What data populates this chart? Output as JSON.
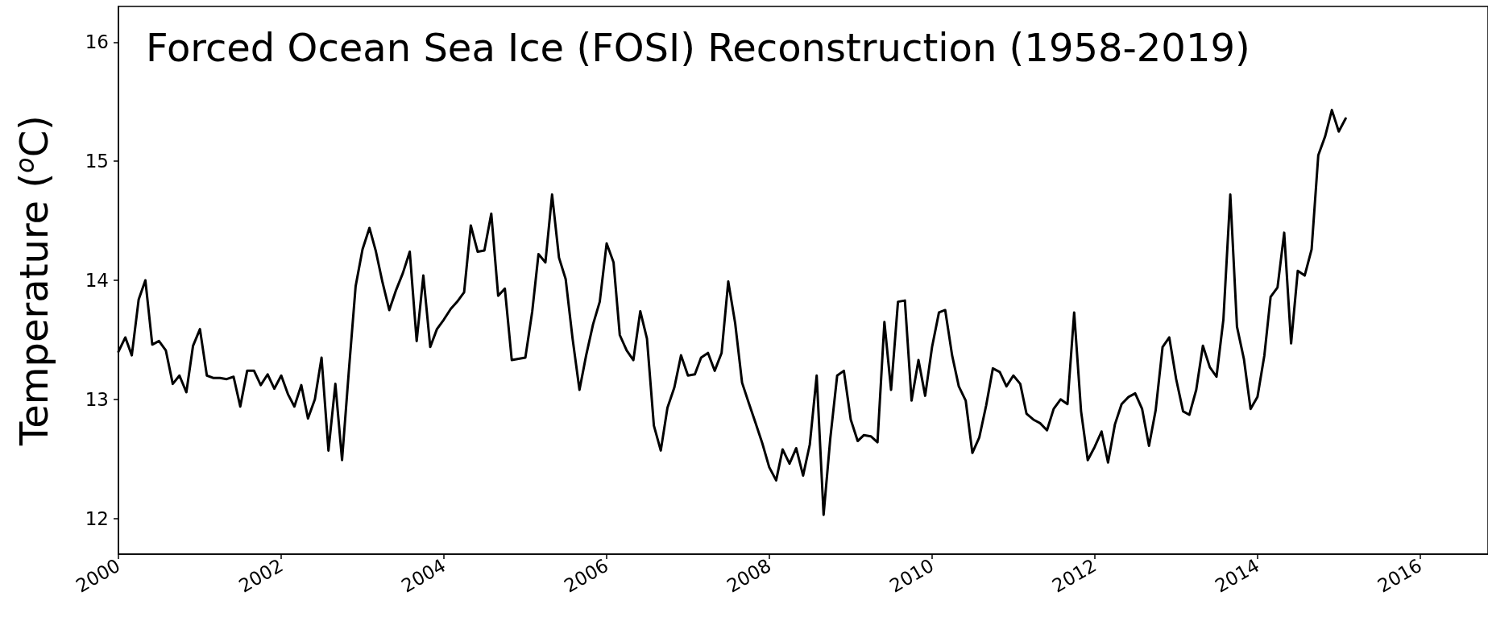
{
  "chart_data": {
    "type": "line",
    "title": "Forced Ocean Sea Ice (FOSI) Reconstruction (1958-2019)",
    "ylabel": "Temperature ($^{o}$C)",
    "x": [
      "2000-01",
      "2000-02",
      "2000-03",
      "2000-04",
      "2000-05",
      "2000-06",
      "2000-07",
      "2000-08",
      "2000-09",
      "2000-10",
      "2000-11",
      "2000-12",
      "2001-01",
      "2001-02",
      "2001-03",
      "2001-04",
      "2001-05",
      "2001-06",
      "2001-07",
      "2001-08",
      "2001-09",
      "2001-10",
      "2001-11",
      "2001-12",
      "2002-01",
      "2002-02",
      "2002-03",
      "2002-04",
      "2002-05",
      "2002-06",
      "2002-07",
      "2002-08",
      "2002-09",
      "2002-10",
      "2002-11",
      "2002-12",
      "2003-01",
      "2003-02",
      "2003-03",
      "2003-04",
      "2003-05",
      "2003-06",
      "2003-07",
      "2003-08",
      "2003-09",
      "2003-10",
      "2003-11",
      "2003-12",
      "2004-01",
      "2004-02",
      "2004-03",
      "2004-04",
      "2004-05",
      "2004-06",
      "2004-07",
      "2004-08",
      "2004-09",
      "2004-10",
      "2004-11",
      "2004-12",
      "2005-01",
      "2005-02",
      "2005-03",
      "2005-04",
      "2005-05",
      "2005-06",
      "2005-07",
      "2005-08",
      "2005-09",
      "2005-10",
      "2005-11",
      "2005-12",
      "2006-01",
      "2006-02",
      "2006-03",
      "2006-04",
      "2006-05",
      "2006-06",
      "2006-07",
      "2006-08",
      "2006-09",
      "2006-10",
      "2006-11",
      "2006-12",
      "2007-01",
      "2007-02",
      "2007-03",
      "2007-04",
      "2007-05",
      "2007-06",
      "2007-07",
      "2007-08",
      "2007-09",
      "2007-10",
      "2007-11",
      "2007-12",
      "2008-01",
      "2008-02",
      "2008-03",
      "2008-04",
      "2008-05",
      "2008-06",
      "2008-07",
      "2008-08",
      "2008-09",
      "2008-10",
      "2008-11",
      "2008-12",
      "2009-01",
      "2009-02",
      "2009-03",
      "2009-04",
      "2009-05",
      "2009-06",
      "2009-07",
      "2009-08",
      "2009-09",
      "2009-10",
      "2009-11",
      "2009-12",
      "2010-01",
      "2010-02",
      "2010-03",
      "2010-04",
      "2010-05",
      "2010-06",
      "2010-07",
      "2010-08",
      "2010-09",
      "2010-10",
      "2010-11",
      "2010-12",
      "2011-01",
      "2011-02",
      "2011-03",
      "2011-04",
      "2011-05",
      "2011-06",
      "2011-07",
      "2011-08",
      "2011-09",
      "2011-10",
      "2011-11",
      "2011-12",
      "2012-01",
      "2012-02",
      "2012-03",
      "2012-04",
      "2012-05",
      "2012-06",
      "2012-07",
      "2012-08",
      "2012-09",
      "2012-10",
      "2012-11",
      "2012-12",
      "2013-01",
      "2013-02",
      "2013-03",
      "2013-04",
      "2013-05",
      "2013-06",
      "2013-07",
      "2013-08",
      "2013-09",
      "2013-10",
      "2013-11",
      "2013-12",
      "2014-01",
      "2014-02",
      "2014-03",
      "2014-04",
      "2014-05",
      "2014-06",
      "2014-07",
      "2014-08",
      "2014-09",
      "2014-10",
      "2014-11",
      "2014-12",
      "2015-01",
      "2015-02"
    ],
    "series": [
      {
        "color": "#000000",
        "values": [
          13.4,
          13.52,
          13.37,
          13.84,
          14.0,
          13.46,
          13.49,
          13.41,
          13.13,
          13.2,
          13.06,
          13.45,
          13.59,
          13.2,
          13.18,
          13.18,
          13.17,
          13.19,
          12.94,
          13.24,
          13.24,
          13.12,
          13.21,
          13.09,
          13.2,
          13.04,
          12.94,
          13.12,
          12.84,
          13.0,
          13.35,
          12.57,
          13.13,
          12.49,
          13.25,
          13.95,
          14.26,
          14.44,
          14.25,
          13.98,
          13.75,
          13.92,
          14.06,
          14.24,
          13.49,
          14.04,
          13.44,
          13.59,
          13.67,
          13.76,
          13.82,
          13.9,
          14.46,
          14.24,
          14.25,
          14.56,
          13.87,
          13.93,
          13.33,
          13.34,
          13.35,
          13.74,
          14.22,
          14.15,
          14.72,
          14.19,
          14.01,
          13.51,
          13.08,
          13.37,
          13.63,
          13.82,
          14.31,
          14.15,
          13.54,
          13.41,
          13.33,
          13.74,
          13.51,
          12.78,
          12.57,
          12.93,
          13.1,
          13.37,
          13.2,
          13.21,
          13.35,
          13.39,
          13.24,
          13.39,
          13.99,
          13.64,
          13.14,
          12.97,
          12.8,
          12.63,
          12.43,
          12.32,
          12.58,
          12.46,
          12.59,
          12.36,
          12.62,
          13.2,
          12.03,
          12.67,
          13.2,
          13.24,
          12.83,
          12.65,
          12.7,
          12.69,
          12.64,
          13.65,
          13.08,
          13.82,
          13.83,
          12.99,
          13.33,
          13.03,
          13.44,
          13.73,
          13.75,
          13.37,
          13.11,
          12.99,
          12.55,
          12.68,
          12.95,
          13.26,
          13.23,
          13.11,
          13.2,
          13.13,
          12.88,
          12.83,
          12.8,
          12.74,
          12.92,
          13.0,
          12.96,
          13.73,
          12.9,
          12.49,
          12.6,
          12.73,
          12.47,
          12.79,
          12.96,
          13.02,
          13.05,
          12.92,
          12.61,
          12.91,
          13.44,
          13.52,
          13.17,
          12.9,
          12.87,
          13.08,
          13.45,
          13.27,
          13.19,
          13.67,
          14.72,
          13.61,
          13.34,
          12.92,
          13.02,
          13.37,
          13.86,
          13.94,
          14.4,
          13.47,
          14.08,
          14.04,
          14.26,
          15.05,
          15.21,
          15.43,
          15.25,
          15.36
        ]
      }
    ],
    "xlim": [
      "2000-01",
      "2016-11"
    ],
    "xticks": [
      "2000",
      "2002",
      "2004",
      "2006",
      "2008",
      "2010",
      "2012",
      "2014",
      "2016"
    ],
    "ylim": [
      11.7,
      16.3
    ],
    "yticks": [
      12,
      13,
      14,
      15,
      16
    ],
    "grid": false,
    "marker": "none",
    "line_style": "solid"
  }
}
